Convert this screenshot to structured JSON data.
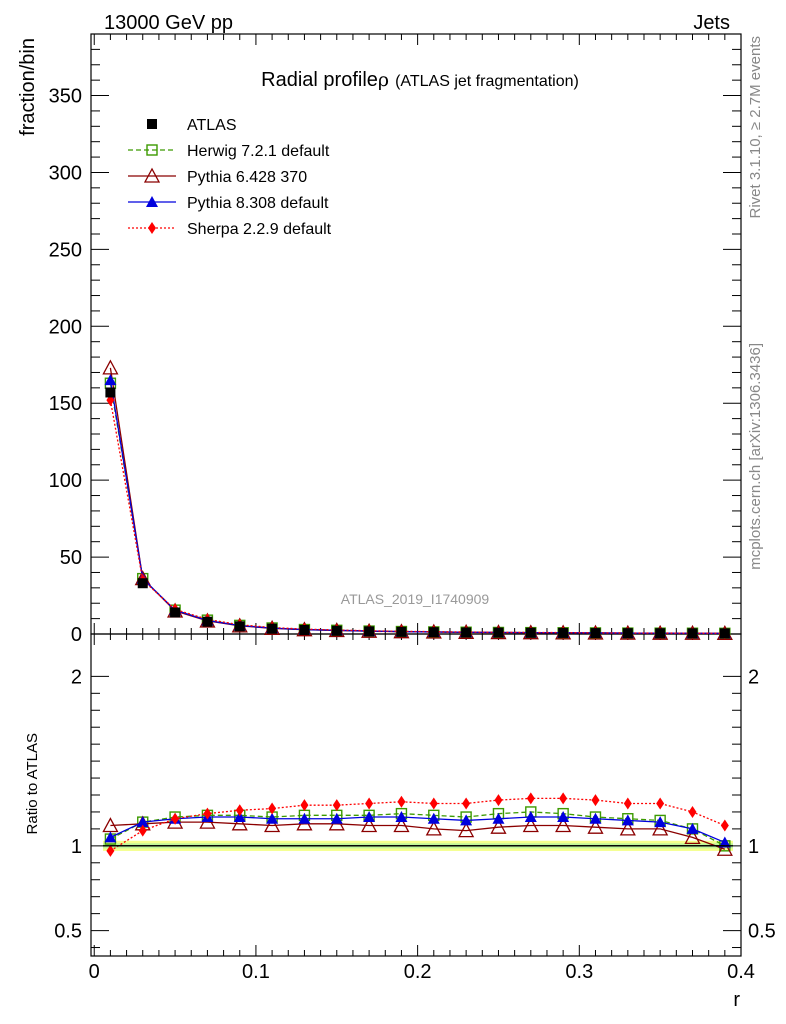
{
  "header": {
    "left": "13000 GeV pp",
    "right": "Jets"
  },
  "side_labels": {
    "top": "Rivet 3.1.10, ≥ 2.7M events",
    "bottom": "mcplots.cern.ch [arXiv:1306.3436]"
  },
  "chart_data": {
    "type": "line",
    "title_main": "Radial profile",
    "title_symbol": "ρ",
    "title_sub": "(ATLAS jet fragmentation)",
    "ylabel": "fraction/bin",
    "ratio_ylabel": "Ratio to ATLAS",
    "xlabel": "r",
    "watermark": "ATLAS_2019_I1740909",
    "xlim": [
      -0.002,
      0.4
    ],
    "ylim": [
      0,
      390
    ],
    "ratio_ylim": [
      0.35,
      2.25
    ],
    "x_ticks": [
      0,
      0.1,
      0.2,
      0.3,
      0.4
    ],
    "x_tick_labels": [
      "0",
      "0.1",
      "0.2",
      "0.3",
      "0.4"
    ],
    "y_ticks": [
      0,
      50,
      100,
      150,
      200,
      250,
      300,
      350
    ],
    "y_tick_labels": [
      "0",
      "50",
      "100",
      "150",
      "200",
      "250",
      "300",
      "350"
    ],
    "ratio_ticks": [
      0.5,
      1,
      2
    ],
    "ratio_tick_labels": [
      "0.5",
      "1",
      "2"
    ],
    "x": [
      0.01,
      0.03,
      0.05,
      0.07,
      0.09,
      0.11,
      0.13,
      0.15,
      0.17,
      0.19,
      0.21,
      0.23,
      0.25,
      0.27,
      0.29,
      0.31,
      0.33,
      0.35,
      0.37,
      0.39
    ],
    "series": [
      {
        "name": "ATLAS",
        "color": "#000000",
        "marker": "square-filled",
        "dash": "",
        "values": [
          157,
          33,
          14,
          8,
          5,
          3.5,
          2.6,
          2.1,
          1.7,
          1.4,
          1.2,
          1.0,
          0.9,
          0.8,
          0.7,
          0.6,
          0.55,
          0.5,
          0.45,
          0.4
        ],
        "ratio": [
          1,
          1,
          1,
          1,
          1,
          1,
          1,
          1,
          1,
          1,
          1,
          1,
          1,
          1,
          1,
          1,
          1,
          1,
          1,
          1
        ]
      },
      {
        "name": "Herwig 7.2.1 default",
        "color": "#3c9a00",
        "marker": "square-open",
        "dash": "5,3",
        "values": [
          163,
          36,
          15.5,
          9,
          5.6,
          3.9,
          2.9,
          2.4,
          1.9,
          1.6,
          1.35,
          1.15,
          1.0,
          0.9,
          0.8,
          0.7,
          0.6,
          0.55,
          0.5,
          0.45
        ],
        "ratio": [
          1.04,
          1.14,
          1.17,
          1.18,
          1.18,
          1.17,
          1.18,
          1.18,
          1.18,
          1.19,
          1.18,
          1.17,
          1.19,
          1.2,
          1.19,
          1.17,
          1.16,
          1.15,
          1.1,
          1.0
        ]
      },
      {
        "name": "Pythia 6.428 370",
        "color": "#8b0000",
        "marker": "triangle-open",
        "dash": "",
        "values": [
          173,
          36,
          15,
          8.5,
          5.3,
          3.7,
          2.8,
          2.3,
          1.8,
          1.5,
          1.3,
          1.1,
          0.95,
          0.85,
          0.75,
          0.65,
          0.57,
          0.52,
          0.47,
          0.4
        ],
        "ratio": [
          1.12,
          1.13,
          1.14,
          1.14,
          1.13,
          1.12,
          1.13,
          1.13,
          1.12,
          1.12,
          1.1,
          1.09,
          1.11,
          1.12,
          1.12,
          1.11,
          1.1,
          1.1,
          1.05,
          0.98
        ]
      },
      {
        "name": "Pythia 8.308 default",
        "color": "#0000dd",
        "marker": "triangle-filled",
        "dash": "",
        "values": [
          165,
          36,
          15.5,
          8.8,
          5.5,
          3.8,
          2.9,
          2.4,
          1.9,
          1.6,
          1.35,
          1.15,
          1.0,
          0.9,
          0.8,
          0.7,
          0.6,
          0.55,
          0.5,
          0.43
        ],
        "ratio": [
          1.05,
          1.14,
          1.16,
          1.17,
          1.17,
          1.16,
          1.16,
          1.16,
          1.17,
          1.17,
          1.16,
          1.15,
          1.16,
          1.17,
          1.17,
          1.16,
          1.15,
          1.14,
          1.1,
          1.02
        ]
      },
      {
        "name": "Sherpa 2.2.9 default",
        "color": "#ff0000",
        "marker": "diamond-filled",
        "dash": "2,2",
        "values": [
          152,
          35,
          16,
          9.5,
          6,
          4.2,
          3.2,
          2.6,
          2.1,
          1.75,
          1.5,
          1.3,
          1.1,
          1.0,
          0.9,
          0.78,
          0.68,
          0.62,
          0.55,
          0.47
        ],
        "ratio": [
          0.97,
          1.09,
          1.16,
          1.19,
          1.21,
          1.22,
          1.24,
          1.24,
          1.25,
          1.26,
          1.25,
          1.25,
          1.27,
          1.28,
          1.28,
          1.27,
          1.25,
          1.25,
          1.2,
          1.12
        ]
      }
    ]
  }
}
